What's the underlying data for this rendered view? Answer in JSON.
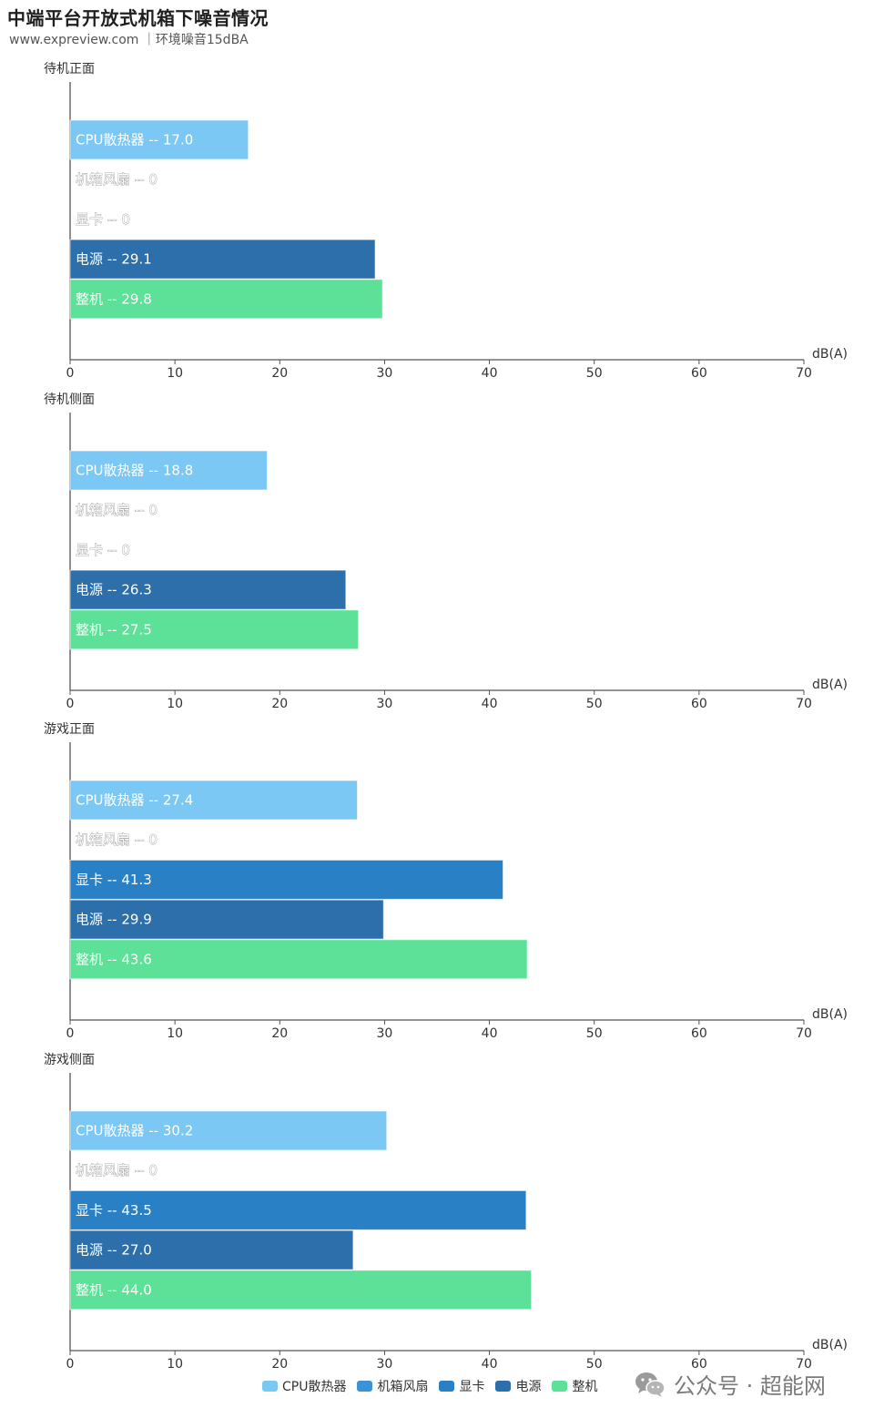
{
  "header": {
    "title": "中端平台开放式机箱下噪音情况",
    "subtitle": "www.expreview.com ｜环境噪音15dBA"
  },
  "colors": {
    "CPU散热器": "#7cc8f5",
    "机箱风扇": "#3a93d8",
    "显卡": "#2a80c4",
    "电源": "#2d6fab",
    "整机": "#5de198"
  },
  "chart_data": [
    {
      "type": "bar",
      "orientation": "horizontal",
      "title": "待机正面",
      "categories": [
        "CPU散热器",
        "机箱风扇",
        "显卡",
        "电源",
        "整机"
      ],
      "values": [
        17.0,
        0,
        0,
        29.1,
        29.8
      ],
      "labels": [
        "CPU散热器 -- 17.0",
        "机箱风扇 -- 0",
        "显卡 -- 0",
        "电源 -- 29.1",
        "整机 -- 29.8"
      ],
      "xlabel": "dB(A)",
      "xlim": [
        0,
        70
      ],
      "xticks": [
        "0",
        "10",
        "20",
        "30",
        "40",
        "50",
        "60",
        "70"
      ]
    },
    {
      "type": "bar",
      "orientation": "horizontal",
      "title": "待机侧面",
      "categories": [
        "CPU散热器",
        "机箱风扇",
        "显卡",
        "电源",
        "整机"
      ],
      "values": [
        18.8,
        0,
        0,
        26.3,
        27.5
      ],
      "labels": [
        "CPU散热器 -- 18.8",
        "机箱风扇 -- 0",
        "显卡 -- 0",
        "电源 -- 26.3",
        "整机 -- 27.5"
      ],
      "xlabel": "dB(A)",
      "xlim": [
        0,
        70
      ],
      "xticks": [
        "0",
        "10",
        "20",
        "30",
        "40",
        "50",
        "60",
        "70"
      ]
    },
    {
      "type": "bar",
      "orientation": "horizontal",
      "title": "游戏正面",
      "categories": [
        "CPU散热器",
        "机箱风扇",
        "显卡",
        "电源",
        "整机"
      ],
      "values": [
        27.4,
        0,
        41.3,
        29.9,
        43.6
      ],
      "labels": [
        "CPU散热器 -- 27.4",
        "机箱风扇 -- 0",
        "显卡 -- 41.3",
        "电源 -- 29.9",
        "整机 -- 43.6"
      ],
      "xlabel": "dB(A)",
      "xlim": [
        0,
        70
      ],
      "xticks": [
        "0",
        "10",
        "20",
        "30",
        "40",
        "50",
        "60",
        "70"
      ]
    },
    {
      "type": "bar",
      "orientation": "horizontal",
      "title": "游戏侧面",
      "categories": [
        "CPU散热器",
        "机箱风扇",
        "显卡",
        "电源",
        "整机"
      ],
      "values": [
        30.2,
        0,
        43.5,
        27.0,
        44.0
      ],
      "labels": [
        "CPU散热器 -- 30.2",
        "机箱风扇 -- 0",
        "显卡 -- 43.5",
        "电源 -- 27.0",
        "整机 -- 44.0"
      ],
      "xlabel": "dB(A)",
      "xlim": [
        0,
        70
      ],
      "xticks": [
        "0",
        "10",
        "20",
        "30",
        "40",
        "50",
        "60",
        "70"
      ]
    }
  ],
  "legend": {
    "placement": "bottom-center",
    "items": [
      {
        "label": "CPU散热器",
        "color": "#7cc8f5"
      },
      {
        "label": "机箱风扇",
        "color": "#3a93d8"
      },
      {
        "label": "显卡",
        "color": "#2a80c4"
      },
      {
        "label": "电源",
        "color": "#2d6fab"
      },
      {
        "label": "整机",
        "color": "#5de198"
      }
    ]
  },
  "watermark": {
    "icon": "wechat-icon",
    "text": "公众号 · 超能网"
  }
}
